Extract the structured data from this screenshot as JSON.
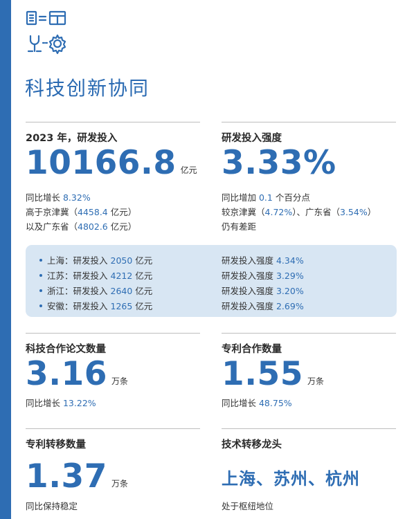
{
  "page": {
    "title": "科技创新协同",
    "logo_icon": "collaboration-icon",
    "accent": "#2e6db3"
  },
  "rd_investment": {
    "title": "2023 年，研发投入",
    "value": "10166.8",
    "unit": "亿元",
    "notes": [
      {
        "pre": "同比增长 ",
        "hl": "8.32%",
        "post": ""
      },
      {
        "pre": "高于京津冀（",
        "hl": "4458.4",
        "post": " 亿元）"
      },
      {
        "pre": "以及广东省（",
        "hl": "4802.6",
        "post": " 亿元）"
      }
    ]
  },
  "rd_intensity": {
    "title": "研发投入强度",
    "value": "3.33%",
    "notes": [
      {
        "pre": "同比增加 ",
        "hl": "0.1",
        "post": " 个百分点"
      },
      {
        "pre": "较京津冀（",
        "hl": "4.72%",
        "post": "）、广东省（",
        "hl2": "3.54%",
        "post2": "）"
      },
      {
        "pre": "仍有差距",
        "hl": "",
        "post": ""
      }
    ]
  },
  "regions": [
    {
      "name": "上海",
      "inv_label": "：研发投入 ",
      "inv_value": "2050",
      "inv_unit": " 亿元",
      "int_label": "研发投入强度 ",
      "int_value": "4.34%"
    },
    {
      "name": "江苏",
      "inv_label": "：研发投入 ",
      "inv_value": "4212",
      "inv_unit": " 亿元",
      "int_label": "研发投入强度 ",
      "int_value": "3.29%"
    },
    {
      "name": "浙江",
      "inv_label": "：研发投入 ",
      "inv_value": "2640",
      "inv_unit": " 亿元",
      "int_label": "研发投入强度 ",
      "int_value": "3.20%"
    },
    {
      "name": "安徽",
      "inv_label": "：研发投入 ",
      "inv_value": "1265",
      "inv_unit": " 亿元",
      "int_label": "研发投入强度 ",
      "int_value": "2.69%"
    }
  ],
  "papers": {
    "title": "科技合作论文数量",
    "value": "3.16",
    "unit": "万条",
    "note_pre": "同比增长 ",
    "note_hl": "13.22%"
  },
  "patents": {
    "title": "专利合作数量",
    "value": "1.55",
    "unit": "万条",
    "note_pre": "同比增长 ",
    "note_hl": "48.75%"
  },
  "transfer": {
    "title": "专利转移数量",
    "value": "1.37",
    "unit": "万条",
    "note": "同比保持稳定"
  },
  "leaders": {
    "title": "技术转移龙头",
    "cities": "上海、苏州、杭州",
    "note": "处于枢纽地位"
  }
}
